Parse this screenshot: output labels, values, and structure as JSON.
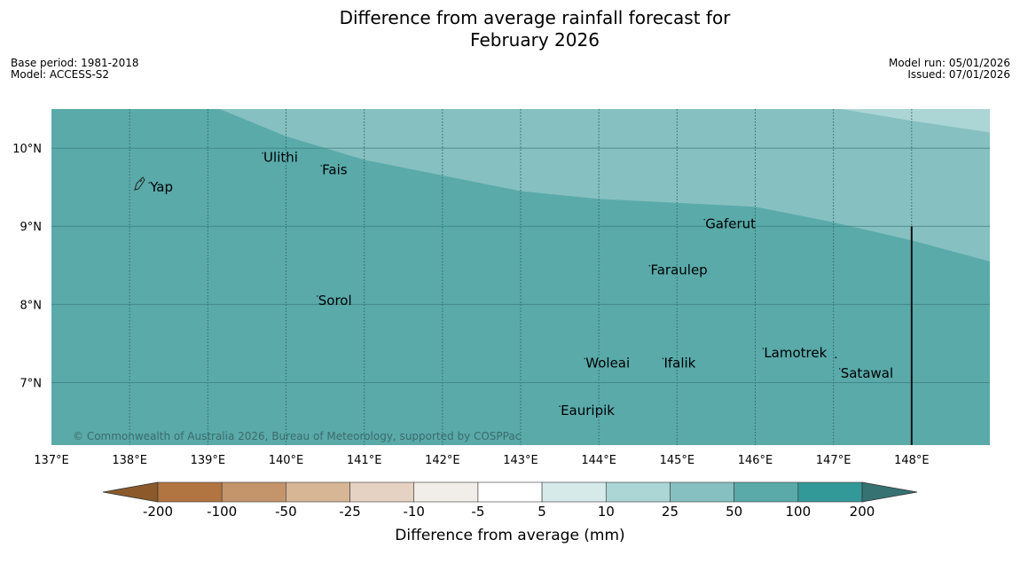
{
  "title": {
    "line1": "Difference from average rainfall forecast for",
    "line2": "February 2026"
  },
  "info_left": {
    "base_period": "Base period: 1981-2018",
    "model": "Model: ACCESS-S2"
  },
  "info_right": {
    "model_run": "Model run: 05/01/2026",
    "issued": "Issued: 07/01/2026"
  },
  "map": {
    "extent": {
      "lon_min": 137.0,
      "lon_max": 149.0,
      "lat_min": 6.2,
      "lat_max": 10.5
    },
    "lon_ticks": [
      {
        "value": 137,
        "label": "137°E"
      },
      {
        "value": 138,
        "label": "138°E"
      },
      {
        "value": 139,
        "label": "139°E"
      },
      {
        "value": 140,
        "label": "140°E"
      },
      {
        "value": 141,
        "label": "141°E"
      },
      {
        "value": 142,
        "label": "142°E"
      },
      {
        "value": 143,
        "label": "143°E"
      },
      {
        "value": 144,
        "label": "144°E"
      },
      {
        "value": 145,
        "label": "145°E"
      },
      {
        "value": 146,
        "label": "146°E"
      },
      {
        "value": 147,
        "label": "147°E"
      },
      {
        "value": 148,
        "label": "148°E"
      }
    ],
    "lat_ticks": [
      {
        "value": 10,
        "label": "10°N"
      },
      {
        "value": 9,
        "label": "9°N"
      },
      {
        "value": 8,
        "label": "8°N"
      },
      {
        "value": 7,
        "label": "7°N"
      }
    ],
    "category_fill": {
      "band_50_100": "#5aaaaa",
      "band_25_50": "#86c0c0",
      "band_10_25": "#acd5d5"
    },
    "boundary_50": [
      [
        139.15,
        10.5
      ],
      [
        140.0,
        10.15
      ],
      [
        141.0,
        9.85
      ],
      [
        142.0,
        9.65
      ],
      [
        143.0,
        9.45
      ],
      [
        144.0,
        9.35
      ],
      [
        145.0,
        9.3
      ],
      [
        146.0,
        9.25
      ],
      [
        147.0,
        9.05
      ],
      [
        148.0,
        8.82
      ],
      [
        149.0,
        8.55
      ]
    ],
    "boundary_25": [
      [
        147.1,
        10.5
      ],
      [
        148.0,
        10.35
      ],
      [
        149.0,
        10.2
      ]
    ],
    "border_line": {
      "lon": 148.0,
      "lat_min": 6.2,
      "lat_max": 9.0
    },
    "places": [
      {
        "name": "Yap",
        "lon": 138.25,
        "lat": 9.5
      },
      {
        "name": "Ulithi",
        "lon": 139.7,
        "lat": 9.88
      },
      {
        "name": "Fais",
        "lon": 140.45,
        "lat": 9.72
      },
      {
        "name": "Gaferut",
        "lon": 145.35,
        "lat": 9.03
      },
      {
        "name": "Faraulep",
        "lon": 144.65,
        "lat": 8.44
      },
      {
        "name": "Sorol",
        "lon": 140.4,
        "lat": 8.05
      },
      {
        "name": "Woleai",
        "lon": 143.82,
        "lat": 7.25
      },
      {
        "name": "Ifalik",
        "lon": 144.82,
        "lat": 7.25
      },
      {
        "name": "Lamotrek",
        "lon": 146.1,
        "lat": 7.38
      },
      {
        "name": "Satawal",
        "lon": 147.08,
        "lat": 7.12
      },
      {
        "name": "Eauripik",
        "lon": 143.5,
        "lat": 6.64
      }
    ],
    "copyright": "© Commonwealth of Australia 2026, Bureau of Meteorology, supported by COSPPac"
  },
  "colorbar": {
    "colors": [
      "#8c5a2a",
      "#b07540",
      "#c4946a",
      "#d7b696",
      "#e6d2c2",
      "#f1ede8",
      "#ffffff",
      "#d6eaea",
      "#acd5d5",
      "#86c0c0",
      "#5aaaaa",
      "#339898",
      "#367272"
    ],
    "labels": [
      "-200",
      "-100",
      "-50",
      "-25",
      "-10",
      "-5",
      "5",
      "10",
      "25",
      "50",
      "100",
      "200"
    ],
    "title": "Difference from average (mm)"
  }
}
